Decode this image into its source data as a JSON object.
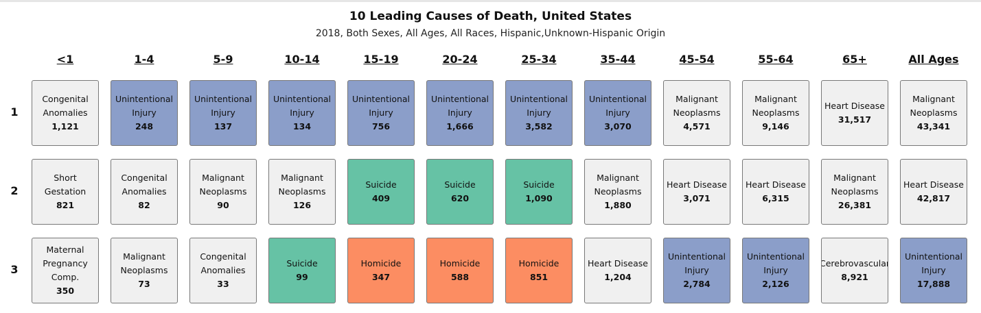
{
  "chart_data": {
    "type": "table",
    "title": "10 Leading Causes of Death, United States",
    "subtitle": "2018, Both Sexes, All Ages, All Races, Hispanic,Unknown-Hispanic Origin",
    "columns": [
      "<1",
      "1-4",
      "5-9",
      "10-14",
      "15-19",
      "20-24",
      "25-34",
      "35-44",
      "45-54",
      "55-64",
      "65+",
      "All Ages"
    ],
    "ranks": [
      "1",
      "2",
      "3"
    ],
    "colors": {
      "Unintentional Injury": "#8b9ec9",
      "Suicide": "#66c2a5",
      "Homicide": "#fc8d62",
      "default": "#f0f0f0"
    },
    "rows": [
      [
        {
          "cause": "Congenital Anomalies",
          "count": "1,121"
        },
        {
          "cause": "Unintentional Injury",
          "count": "248"
        },
        {
          "cause": "Unintentional Injury",
          "count": "137"
        },
        {
          "cause": "Unintentional Injury",
          "count": "134"
        },
        {
          "cause": "Unintentional Injury",
          "count": "756"
        },
        {
          "cause": "Unintentional Injury",
          "count": "1,666"
        },
        {
          "cause": "Unintentional Injury",
          "count": "3,582"
        },
        {
          "cause": "Unintentional Injury",
          "count": "3,070"
        },
        {
          "cause": "Malignant Neoplasms",
          "count": "4,571"
        },
        {
          "cause": "Malignant Neoplasms",
          "count": "9,146"
        },
        {
          "cause": "Heart Disease",
          "count": "31,517"
        },
        {
          "cause": "Malignant Neoplasms",
          "count": "43,341"
        }
      ],
      [
        {
          "cause": "Short Gestation",
          "count": "821"
        },
        {
          "cause": "Congenital Anomalies",
          "count": "82"
        },
        {
          "cause": "Malignant Neoplasms",
          "count": "90"
        },
        {
          "cause": "Malignant Neoplasms",
          "count": "126"
        },
        {
          "cause": "Suicide",
          "count": "409"
        },
        {
          "cause": "Suicide",
          "count": "620"
        },
        {
          "cause": "Suicide",
          "count": "1,090"
        },
        {
          "cause": "Malignant Neoplasms",
          "count": "1,880"
        },
        {
          "cause": "Heart Disease",
          "count": "3,071"
        },
        {
          "cause": "Heart Disease",
          "count": "6,315"
        },
        {
          "cause": "Malignant Neoplasms",
          "count": "26,381"
        },
        {
          "cause": "Heart Disease",
          "count": "42,817"
        }
      ],
      [
        {
          "cause": "Maternal Pregnancy Comp.",
          "count": "350"
        },
        {
          "cause": "Malignant Neoplasms",
          "count": "73"
        },
        {
          "cause": "Congenital Anomalies",
          "count": "33"
        },
        {
          "cause": "Suicide",
          "count": "99"
        },
        {
          "cause": "Homicide",
          "count": "347"
        },
        {
          "cause": "Homicide",
          "count": "588"
        },
        {
          "cause": "Homicide",
          "count": "851"
        },
        {
          "cause": "Heart Disease",
          "count": "1,204"
        },
        {
          "cause": "Unintentional Injury",
          "count": "2,784"
        },
        {
          "cause": "Unintentional Injury",
          "count": "2,126"
        },
        {
          "cause": "Cerebrovascular",
          "count": "8,921"
        },
        {
          "cause": "Unintentional Injury",
          "count": "17,888"
        }
      ]
    ]
  }
}
